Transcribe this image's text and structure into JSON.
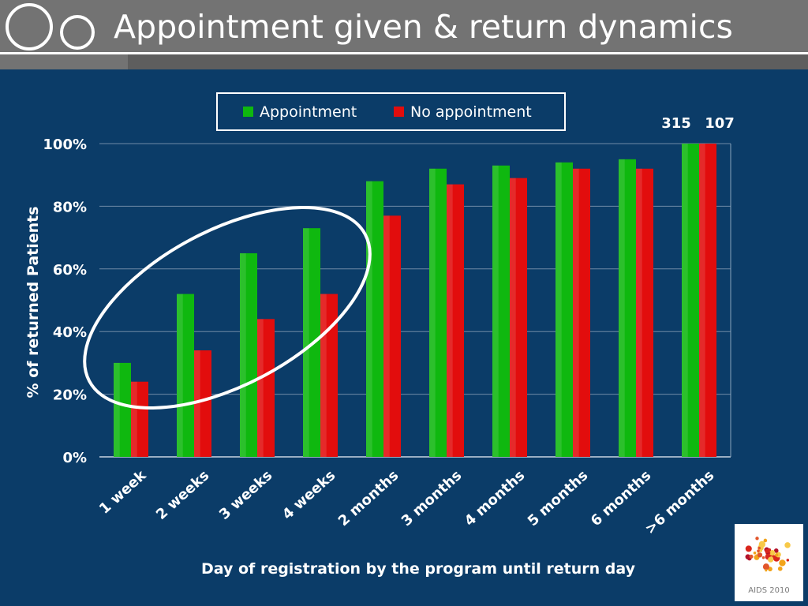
{
  "title": "Appointment given & return dynamics",
  "colors": {
    "appointment": "#0fb80f",
    "no_appointment": "#e20d0d",
    "background": "#0b3c68",
    "title_bar": "#737373"
  },
  "logo": {
    "text": "AIDS 2010"
  },
  "chart_data": {
    "type": "bar",
    "ylabel": "% of returned Patients",
    "xlabel": "Day of registration by the program until return day",
    "ylim": [
      0,
      100
    ],
    "yticks": [
      "0%",
      "20%",
      "40%",
      "60%",
      "80%",
      "100%"
    ],
    "grid": true,
    "legend_position": "top",
    "categories": [
      "1 week",
      "2 weeks",
      "3 weeks",
      "4 weeks",
      "2 months",
      "3 months",
      "4 months",
      "5 months",
      "6 months",
      ">6 months"
    ],
    "series": [
      {
        "name": "Appointment",
        "values": [
          30,
          52,
          65,
          73,
          88,
          92,
          93,
          94,
          95,
          100
        ]
      },
      {
        "name": "No appointment",
        "values": [
          24,
          34,
          44,
          52,
          77,
          87,
          89,
          92,
          92,
          100
        ]
      }
    ],
    "annotations": [
      "315",
      "107"
    ],
    "highlighted_categories": [
      "1 week",
      "2 weeks",
      "3 weeks",
      "4 weeks"
    ]
  }
}
